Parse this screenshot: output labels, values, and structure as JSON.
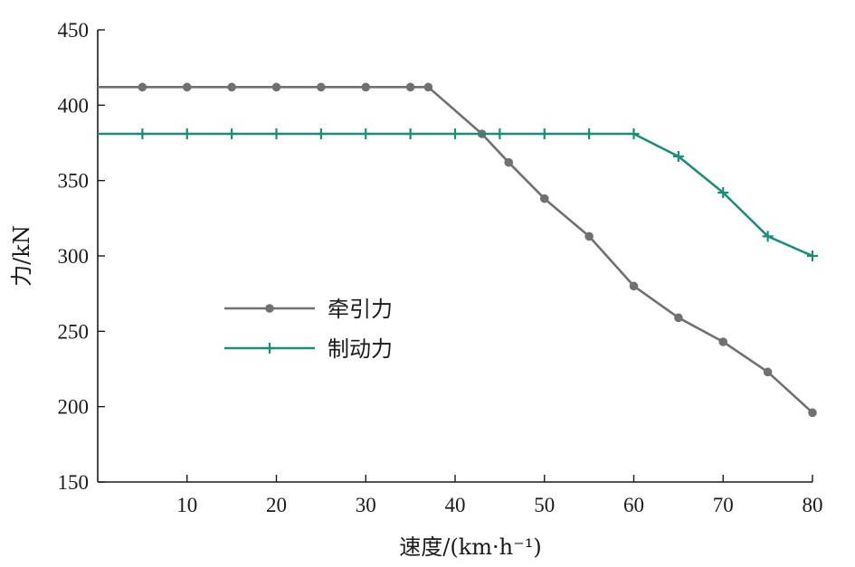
{
  "chart_data": {
    "type": "line",
    "xlabel": "速度/(km·h⁻¹)",
    "ylabel": "力/kN",
    "xlim": [
      0,
      80
    ],
    "ylim": [
      150,
      450
    ],
    "xticks": [
      10,
      20,
      30,
      40,
      50,
      60,
      70,
      80
    ],
    "yticks": [
      150,
      200,
      250,
      300,
      350,
      400,
      450
    ],
    "grid": false,
    "legend_position": "center-left",
    "series": [
      {
        "name": "牵引力",
        "color": "#707070",
        "marker": "circle",
        "x": [
          0,
          5,
          10,
          15,
          20,
          25,
          30,
          35,
          37,
          43,
          46,
          50,
          55,
          60,
          65,
          70,
          75,
          80
        ],
        "y": [
          412,
          412,
          412,
          412,
          412,
          412,
          412,
          412,
          412,
          381,
          362,
          338,
          313,
          280,
          259,
          243,
          223,
          196
        ],
        "marker_x": [
          5,
          10,
          15,
          20,
          25,
          30,
          35,
          37,
          43,
          46,
          50,
          55,
          60,
          65,
          70,
          75,
          80
        ],
        "marker_y": [
          412,
          412,
          412,
          412,
          412,
          412,
          412,
          412,
          381,
          362,
          338,
          313,
          280,
          259,
          243,
          223,
          196
        ]
      },
      {
        "name": "制动力",
        "color": "#1a8f78",
        "marker": "plus",
        "x": [
          0,
          5,
          10,
          15,
          20,
          25,
          30,
          35,
          40,
          45,
          50,
          55,
          60,
          65,
          70,
          75,
          80
        ],
        "y": [
          381,
          381,
          381,
          381,
          381,
          381,
          381,
          381,
          381,
          381,
          381,
          381,
          381,
          366,
          342,
          313,
          300
        ],
        "marker_x": [
          5,
          10,
          15,
          20,
          25,
          30,
          35,
          40,
          45,
          50,
          55,
          60,
          65,
          70,
          75,
          80
        ],
        "marker_y": [
          381,
          381,
          381,
          381,
          381,
          381,
          381,
          381,
          381,
          381,
          381,
          381,
          366,
          342,
          313,
          300
        ]
      }
    ]
  }
}
